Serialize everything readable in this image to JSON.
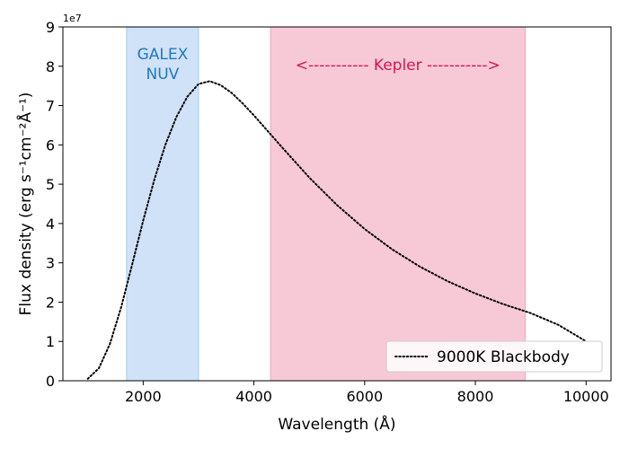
{
  "chart_data": {
    "type": "line",
    "title": "",
    "xlabel": "Wavelength (Å)",
    "ylabel": "Flux density (erg s⁻¹cm⁻²Å⁻¹)",
    "y_offset_label": "1e7",
    "xlim": [
      550,
      10450
    ],
    "ylim": [
      0,
      9
    ],
    "x_ticks": [
      2000,
      4000,
      6000,
      8000,
      10000
    ],
    "y_ticks": [
      0,
      1,
      2,
      3,
      4,
      5,
      6,
      7,
      8,
      9
    ],
    "grid": false,
    "legend_placement": "lower-right",
    "series": [
      {
        "name": "9000K Blackbody",
        "style": "dotted",
        "color": "#000000",
        "x": [
          1000,
          1200,
          1400,
          1600,
          1800,
          2000,
          2200,
          2400,
          2600,
          2800,
          3000,
          3200,
          3400,
          3600,
          3800,
          4000,
          4500,
          5000,
          5500,
          6000,
          6500,
          7000,
          7500,
          8000,
          8500,
          9000,
          9500,
          10000
        ],
        "values": [
          0.05,
          0.32,
          0.94,
          1.86,
          2.95,
          4.07,
          5.11,
          6.0,
          6.71,
          7.23,
          7.55,
          7.62,
          7.52,
          7.32,
          7.05,
          6.75,
          5.95,
          5.17,
          4.47,
          3.86,
          3.34,
          2.9,
          2.53,
          2.22,
          1.95,
          1.72,
          1.42,
          1.0
        ]
      }
    ],
    "bands": [
      {
        "label_lines": [
          "GALEX",
          "NUV"
        ],
        "x_range": [
          1700,
          3000
        ],
        "fill": "#cfe2f8",
        "edge": "#a8cbf0",
        "text_color": "#1f77c4"
      },
      {
        "label": "<----------- Kepler ----------->",
        "x_range": [
          4300,
          8900
        ],
        "fill": "#f7c9d6",
        "edge": "#eaa8bd",
        "text_color": "#d6144d"
      }
    ]
  }
}
